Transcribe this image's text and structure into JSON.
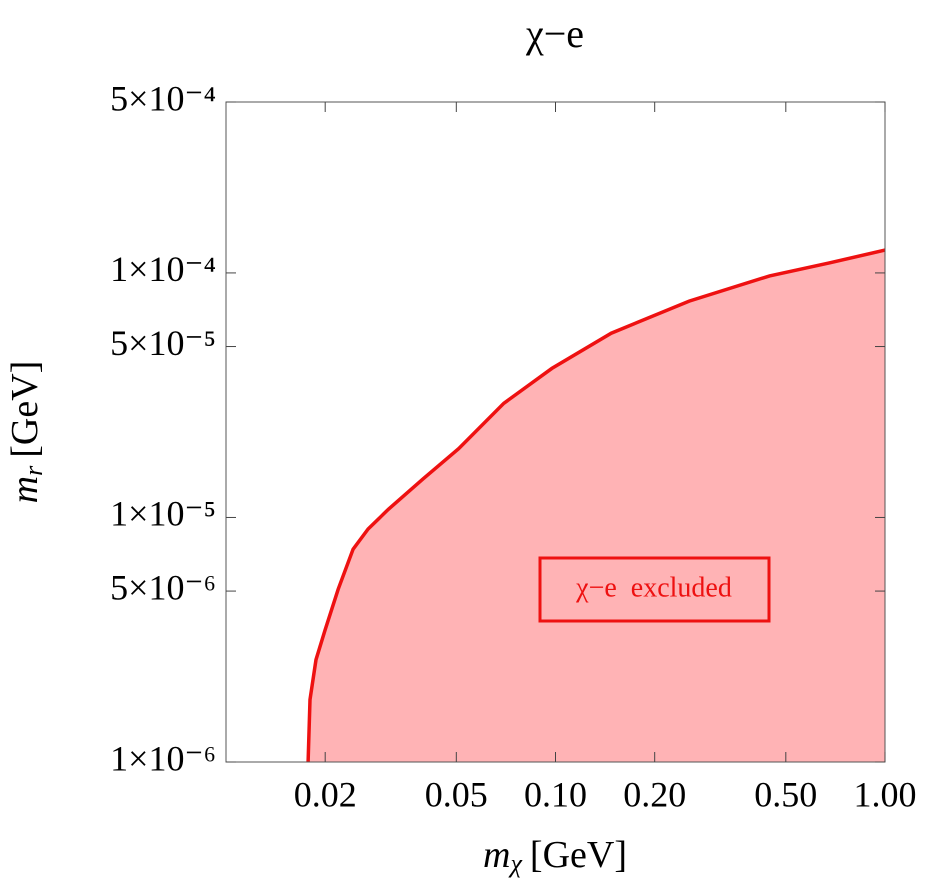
{
  "chart_data": {
    "type": "area",
    "title": "χ−e",
    "x_label": {
      "symbol": "m",
      "subscript": "χ",
      "unit": "[GeV]"
    },
    "y_label": {
      "symbol": "m",
      "subscript": "r",
      "unit": "[GeV]"
    },
    "x": [
      0.01775,
      0.01799,
      0.01876,
      0.02,
      0.0219,
      0.0243,
      0.027,
      0.0311,
      0.0397,
      0.0508,
      0.0697,
      0.0975,
      0.1476,
      0.2546,
      0.4463,
      0.68,
      1.0
    ],
    "series": [
      {
        "name": "χ−e  excluded",
        "color": "#ee1111",
        "fill": "#ffb3b5",
        "values": [
          1e-06,
          1.8e-06,
          2.62e-06,
          3.48e-06,
          5.09e-06,
          7.42e-06,
          8.97e-06,
          1.08e-05,
          1.44e-05,
          1.91e-05,
          2.93e-05,
          4.07e-05,
          5.67e-05,
          7.67e-05,
          9.72e-05,
          0.00011,
          0.000124
        ]
      }
    ],
    "annotation": "χ−e  excluded",
    "xlim": [
      0.01,
      1
    ],
    "ylim": [
      1e-06,
      0.0005
    ],
    "log_x": true,
    "log_y": true,
    "grid": false,
    "xticks": [
      0.02,
      0.05,
      {
        "value": 0.1,
        "label": "0.10"
      },
      {
        "value": 0.2,
        "label": "0.20"
      },
      {
        "value": 0.5,
        "label": "0.50"
      },
      {
        "value": 1,
        "label": "1.00"
      }
    ],
    "yticks": [
      {
        "value": 1e-06,
        "label": "1×10⁻⁶"
      },
      {
        "value": 5e-06,
        "label": "5×10⁻⁶"
      },
      {
        "value": 1e-05,
        "label": "1×10⁻⁵"
      },
      {
        "value": 5e-05,
        "label": "5×10⁻⁵"
      },
      {
        "value": 0.0001,
        "label": "1×10⁻⁴"
      },
      {
        "value": 0.0005,
        "label": "5×10⁻⁴"
      }
    ]
  }
}
